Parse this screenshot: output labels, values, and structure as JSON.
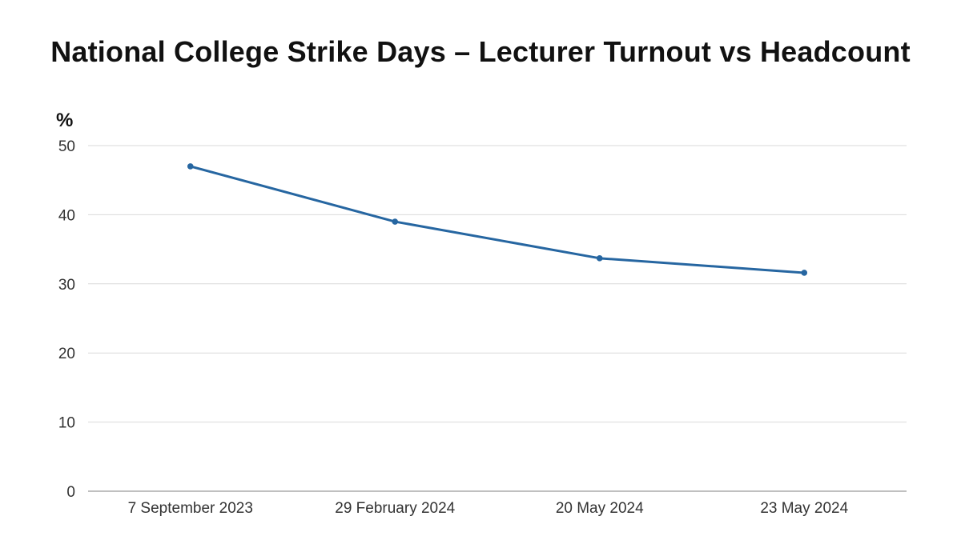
{
  "chart_data": {
    "type": "line",
    "title": "National College Strike Days – Lecturer Turnout vs Headcount",
    "ylabel": "%",
    "xlabel": "",
    "categories": [
      "7 September 2023",
      "29 February 2024",
      "20 May 2024",
      "23 May 2024"
    ],
    "series": [
      {
        "values": [
          47.0,
          39.0,
          33.7,
          31.6
        ],
        "color": "#2666a1"
      }
    ],
    "yticks": [
      "0",
      "10",
      "20",
      "30",
      "40",
      "50"
    ],
    "ylim": [
      0,
      50
    ],
    "grid": true,
    "legend": "none"
  }
}
